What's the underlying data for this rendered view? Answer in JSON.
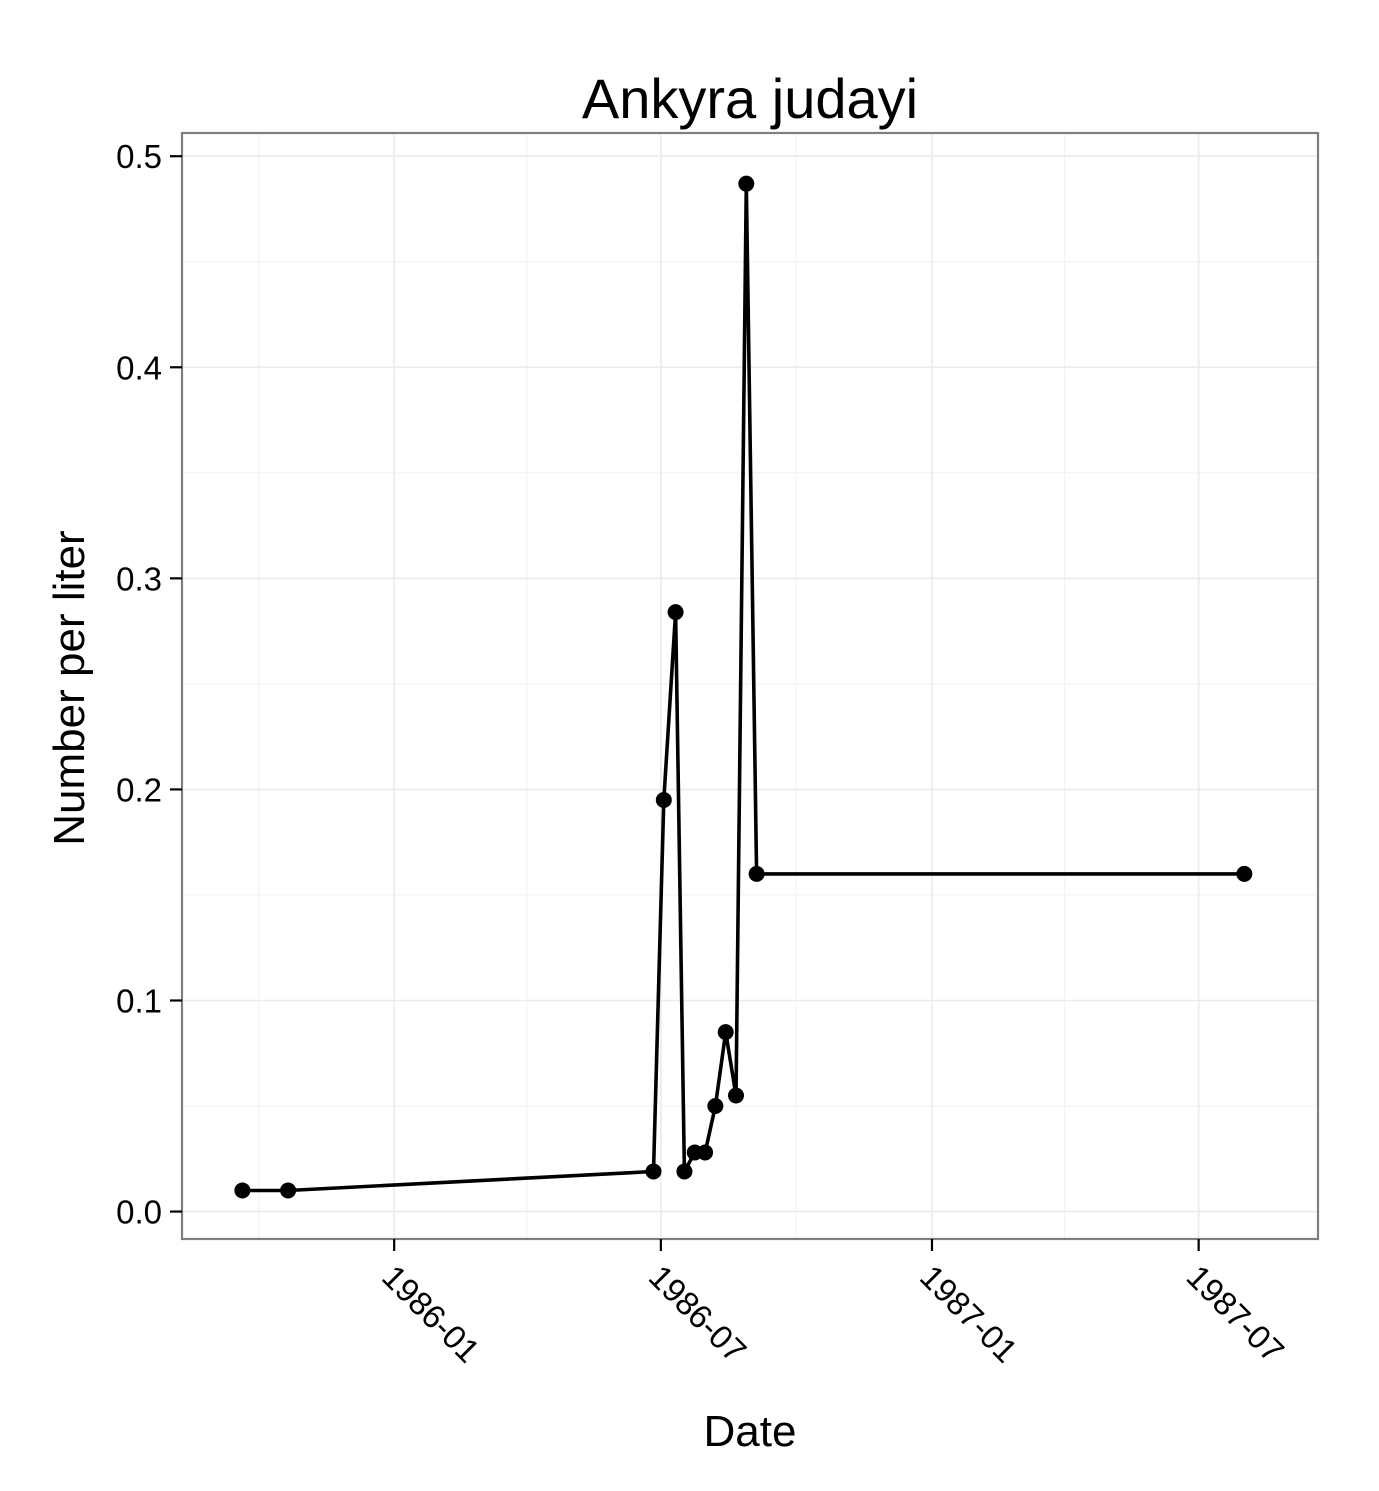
{
  "chart_data": {
    "type": "line",
    "title": "Ankyra judayi",
    "xlabel": "Date",
    "ylabel": "Number per liter",
    "x_type": "date",
    "xlim": [
      "1985-08-10",
      "1987-09-20"
    ],
    "ylim": [
      -0.013,
      0.511
    ],
    "x_ticks": [
      "1986-01-01",
      "1986-07-01",
      "1987-01-01",
      "1987-07-01"
    ],
    "x_tick_labels": [
      "1986-01",
      "1986-07",
      "1987-01",
      "1987-07"
    ],
    "x_minor_ticks": [
      "1985-10-01",
      "1986-04-01",
      "1986-10-01",
      "1987-04-01"
    ],
    "y_ticks": [
      0.0,
      0.1,
      0.2,
      0.3,
      0.4,
      0.5
    ],
    "y_tick_labels": [
      "0.0",
      "0.1",
      "0.2",
      "0.3",
      "0.4",
      "0.5"
    ],
    "grid": true,
    "series": [
      {
        "x": [
          "1985-09-20",
          "1985-10-21",
          "1986-06-26",
          "1986-07-03",
          "1986-07-11",
          "1986-07-17",
          "1986-07-24",
          "1986-07-31",
          "1986-08-07",
          "1986-08-14",
          "1986-08-21",
          "1986-08-28",
          "1986-09-04",
          "1987-08-01"
        ],
        "y": [
          0.01,
          0.01,
          0.019,
          0.195,
          0.284,
          0.019,
          0.028,
          0.028,
          0.05,
          0.085,
          0.055,
          0.487,
          0.16,
          0.16
        ]
      }
    ]
  }
}
